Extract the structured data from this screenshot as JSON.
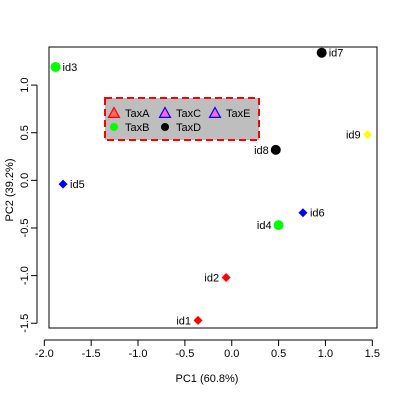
{
  "chart_data": {
    "type": "scatter",
    "title": "",
    "xlabel": "PC1 (60.8%)",
    "ylabel": "PC2 (39.2%)",
    "xlim": [
      -1.95,
      1.55
    ],
    "ylim": [
      -1.55,
      1.4
    ],
    "xticks": [
      -2.0,
      -1.5,
      -1.0,
      -0.5,
      0.0,
      0.5,
      1.0,
      1.5
    ],
    "xtick_labels": [
      "-2.0",
      "-1.5",
      "-1.0",
      "-0.5",
      "0.0",
      "0.5",
      "1.0",
      "1.5"
    ],
    "yticks": [
      -1.5,
      -1.0,
      -0.5,
      0.0,
      0.5,
      1.0
    ],
    "ytick_labels": [
      "-1.5",
      "-1.0",
      "-0.5",
      "0.0",
      "0.5",
      "1.0"
    ],
    "grid": false,
    "legend_position": "top-left inside plot",
    "legend_style": {
      "fill": "#bebebe",
      "border": "#ff0000",
      "border_dash": true
    },
    "legend": [
      {
        "label": "TaxA",
        "marker": "triangle",
        "color": "#ff0000"
      },
      {
        "label": "TaxB",
        "marker": "circle",
        "color": "#00ff00"
      },
      {
        "label": "TaxC",
        "marker": "triangle",
        "color": "#0000ff"
      },
      {
        "label": "TaxD",
        "marker": "circle",
        "color": "#000000"
      },
      {
        "label": "TaxE",
        "marker": "triangle",
        "color": "#0000ff"
      }
    ],
    "points": [
      {
        "id": "id1",
        "x": -0.36,
        "y": -1.47,
        "marker": "diamond",
        "color": "#ff0000",
        "label_side": "left"
      },
      {
        "id": "id2",
        "x": -0.06,
        "y": -1.02,
        "marker": "diamond",
        "color": "#ff0000",
        "label_side": "left"
      },
      {
        "id": "id3",
        "x": -1.88,
        "y": 1.19,
        "marker": "circle",
        "color": "#00ff00",
        "label_side": "right"
      },
      {
        "id": "id4",
        "x": 0.5,
        "y": -0.47,
        "marker": "circle",
        "color": "#00ff00",
        "label_side": "left"
      },
      {
        "id": "id5",
        "x": -1.8,
        "y": -0.04,
        "marker": "diamond",
        "color": "#0000ff",
        "label_side": "right"
      },
      {
        "id": "id6",
        "x": 0.76,
        "y": -0.34,
        "marker": "diamond",
        "color": "#0000ff",
        "label_side": "right"
      },
      {
        "id": "id7",
        "x": 0.96,
        "y": 1.34,
        "marker": "circle",
        "color": "#000000",
        "label_side": "right"
      },
      {
        "id": "id8",
        "x": 0.47,
        "y": 0.32,
        "marker": "circle",
        "color": "#000000",
        "label_side": "left"
      },
      {
        "id": "id9",
        "x": 1.45,
        "y": 0.48,
        "marker": "diamond",
        "color": "#ffff00",
        "label_side": "left"
      }
    ]
  }
}
